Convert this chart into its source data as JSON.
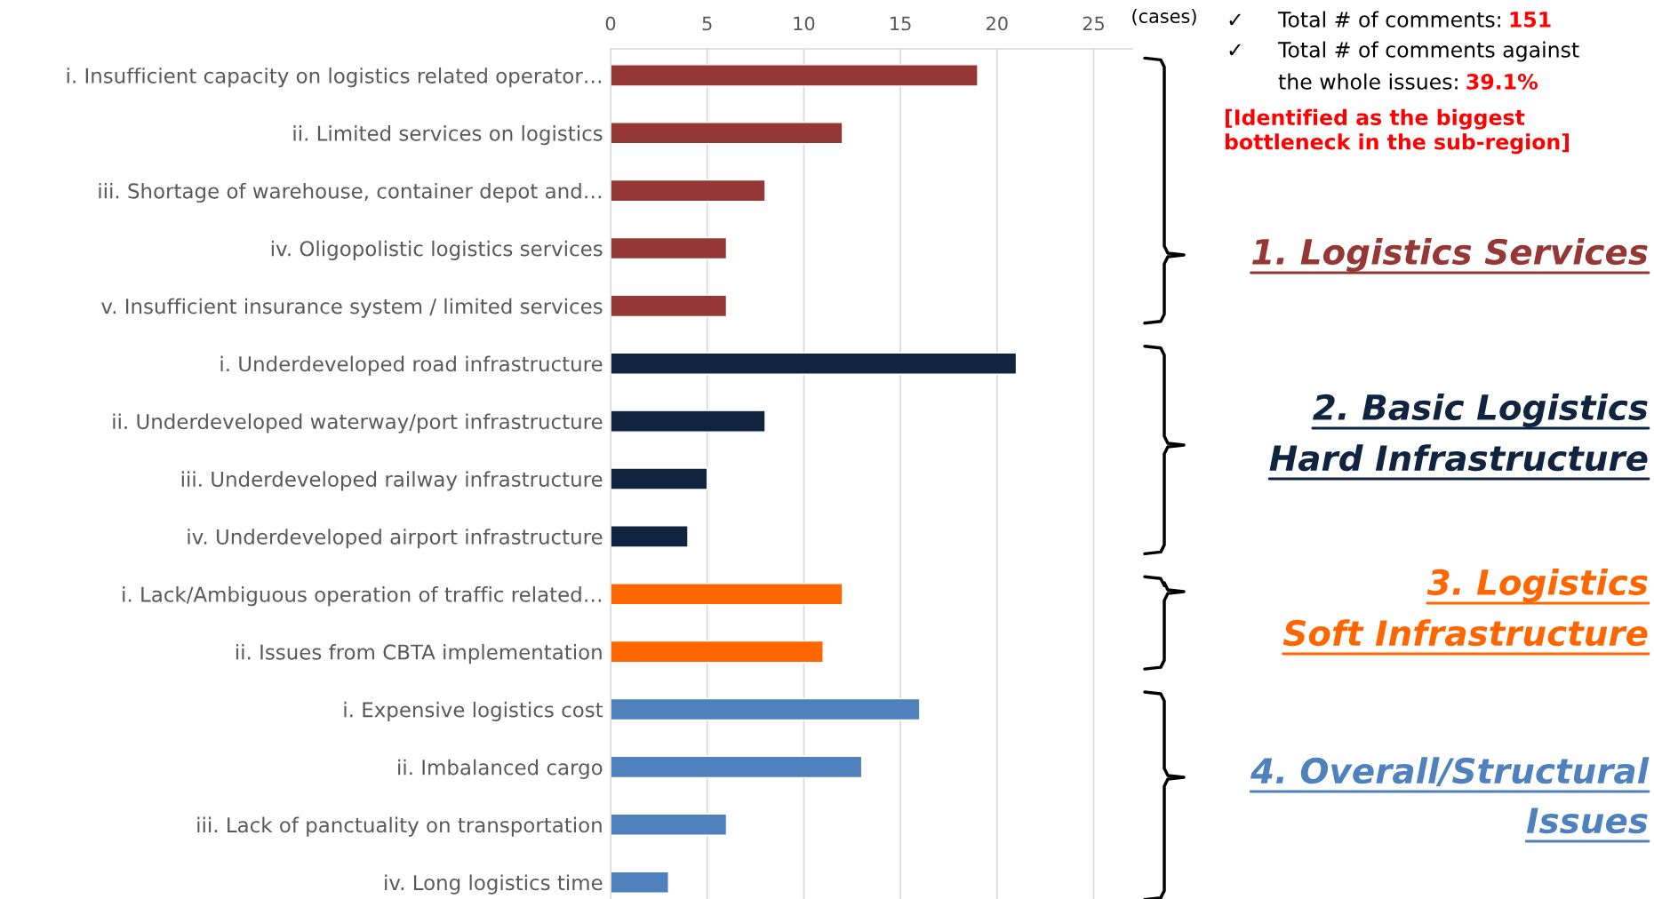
{
  "chart_data": {
    "type": "bar",
    "orientation": "horizontal",
    "xlabel": "(cases)",
    "categories": [
      "i. Insufficient capacity on logistics related operator…",
      "ii. Limited services on logistics",
      "iii. Shortage of warehouse, container depot and…",
      "iv. Oligopolistic logistics services",
      "v. Insufficient insurance system / limited services",
      "i. Underdeveloped road infrastructure",
      "ii. Underdeveloped waterway/port infrastructure",
      "iii. Underdeveloped railway infrastructure",
      "iv. Underdeveloped airport infrastructure",
      "i. Lack/Ambiguous operation of traffic related…",
      "ii. Issues from CBTA implementation",
      "i. Expensive logistics cost",
      "ii. Imbalanced cargo",
      "iii. Lack of panctuality on transportation",
      "iv. Long logistics time"
    ],
    "series": [
      {
        "name": "1. Logistics Services",
        "color": "#953735",
        "values": [
          19,
          12,
          8,
          6,
          6,
          null,
          null,
          null,
          null,
          null,
          null,
          null,
          null,
          null,
          null
        ]
      },
      {
        "name": "2. Basic Logistics\nHard Infrastructure",
        "color": "#10243f",
        "values": [
          null,
          null,
          null,
          null,
          null,
          21,
          8,
          5,
          4,
          null,
          null,
          null,
          null,
          null,
          null
        ]
      },
      {
        "name": "3. Logistics\nSoft Infrastructure",
        "color": "#ff6600",
        "values": [
          null,
          null,
          null,
          null,
          null,
          null,
          null,
          null,
          null,
          12,
          11,
          null,
          null,
          null,
          null
        ]
      },
      {
        "name": "4. Overall/Structural\nIssues",
        "color": "#4f81bd",
        "values": [
          null,
          null,
          null,
          null,
          null,
          null,
          null,
          null,
          null,
          null,
          null,
          16,
          13,
          6,
          3
        ]
      }
    ],
    "xlim": [
      0,
      27
    ],
    "xticks": [
      0,
      5,
      10,
      15,
      20,
      25
    ],
    "grid": "x",
    "legend": false,
    "annotations": [
      "✓",
      "Total # of comments:",
      "151",
      "✓",
      "Total # of comments against",
      "the whole issues:",
      "39.1%",
      "[Identified as the biggest\nbottleneck in the sub-region]"
    ]
  }
}
